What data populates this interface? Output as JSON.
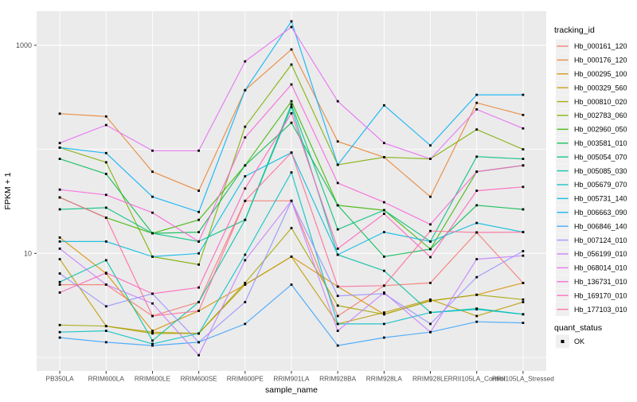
{
  "figure": {
    "legend": {
      "tracking_title": "tracking_id",
      "quant_title": "quant_status",
      "quant_label": "OK"
    },
    "colors": {
      "panel_bg": "#EBEBEB",
      "grid": "#FFFFFF",
      "tick_text": "#4D4D4D",
      "axis_text": "#000000",
      "legend_key_bg": "#F0F0F0",
      "point": "#000000"
    }
  },
  "chart_data": {
    "type": "line",
    "xlabel": "sample_name",
    "ylabel": "FPKM + 1",
    "y_scale": "log10",
    "y_tick_values": [
      10,
      1000
    ],
    "y_minor_gridline_values": [
      1,
      100
    ],
    "legend_position": "right",
    "point_shape": "small-black-square (quant_status OK)",
    "categories": [
      "PB350LA",
      "RRIM600LA",
      "RRIM600LE",
      "RRIM600SE",
      "RRIM600PE",
      "RRIM901LA",
      "RRIM928BA",
      "RRIM928LA",
      "RRIM928LE",
      "RRII105LA_Control",
      "RRII105LA_Stressed"
    ],
    "series": [
      {
        "name": "Hb_000161_120",
        "color": "#F8766D",
        "values": [
          5.0,
          5.0,
          2.5,
          3.4,
          32,
          32,
          2.5,
          4.9,
          5.2,
          15.9,
          5.2
        ]
      },
      {
        "name": "Hb_000176_120",
        "color": "#EA8331",
        "values": [
          220,
          207,
          61,
          40,
          370,
          912,
          119,
          84,
          35,
          280,
          214
        ]
      },
      {
        "name": "Hb_000295_100",
        "color": "#D89000",
        "values": [
          14.2,
          6.4,
          1.8,
          2.8,
          5.0,
          9.3,
          4.8,
          2.6,
          3.5,
          4.0,
          5.2
        ]
      },
      {
        "name": "Hb_000329_560",
        "color": "#C09B00",
        "values": [
          8.8,
          2.0,
          1.75,
          1.7,
          5.0,
          9.3,
          2.1,
          2.7,
          3.6,
          2.5,
          3.4
        ]
      },
      {
        "name": "Hb_000810_020",
        "color": "#A3A500",
        "values": [
          2.05,
          2.0,
          1.7,
          1.7,
          5.2,
          17.5,
          3.15,
          2.6,
          3.5,
          4.0,
          3.6
        ]
      },
      {
        "name": "Hb_002783_060",
        "color": "#7CAE00",
        "values": [
          104,
          75,
          9.3,
          7.8,
          165,
          653,
          71,
          84,
          81,
          155,
          100
        ]
      },
      {
        "name": "Hb_002960_050",
        "color": "#39B600",
        "values": [
          34.5,
          22,
          15.6,
          21,
          70,
          290,
          29,
          26,
          11,
          61,
          70
        ]
      },
      {
        "name": "Hb_003581_010",
        "color": "#00BB4E",
        "values": [
          81,
          58,
          15.6,
          16,
          70,
          180,
          29,
          9.3,
          11,
          29,
          26.5
        ]
      },
      {
        "name": "Hb_005054_070",
        "color": "#00BF7D",
        "values": [
          26.5,
          27.5,
          15.6,
          13,
          21,
          270,
          17,
          26,
          13,
          85,
          81
        ]
      },
      {
        "name": "Hb_005085_030",
        "color": "#00C1A3",
        "values": [
          5.3,
          8.6,
          1.45,
          3.4,
          21,
          255,
          9.7,
          6.8,
          2.7,
          2.95,
          2.6
        ]
      },
      {
        "name": "Hb_005679_070",
        "color": "#00BFC4",
        "values": [
          1.75,
          1.8,
          1.35,
          1.7,
          9.7,
          60,
          2.1,
          2.1,
          2.7,
          2.9,
          2.6
        ]
      },
      {
        "name": "Hb_005731_140",
        "color": "#00BAE0",
        "values": [
          13,
          13,
          9.3,
          10,
          55,
          93,
          9.7,
          16,
          13,
          19.6,
          16
        ]
      },
      {
        "name": "Hb_006663_090",
        "color": "#00B0F6",
        "values": [
          104,
          92,
          35,
          25,
          370,
          1700,
          71,
          265,
          109,
          334,
          334
        ]
      },
      {
        "name": "Hb_006846_140",
        "color": "#35A2FF",
        "values": [
          1.55,
          1.4,
          1.3,
          1.4,
          2.1,
          5.0,
          1.3,
          1.55,
          1.75,
          2.2,
          2.15
        ]
      },
      {
        "name": "Hb_007124_010",
        "color": "#9590FF",
        "values": [
          6.4,
          3.1,
          4.1,
          1.4,
          3.4,
          32,
          3.9,
          4.1,
          2.1,
          5.9,
          10.5
        ]
      },
      {
        "name": "Hb_056199_010",
        "color": "#C77CFF",
        "values": [
          11.1,
          5.0,
          3.3,
          1.05,
          8.6,
          32,
          1.8,
          4.2,
          1.75,
          8.8,
          9.5
        ]
      },
      {
        "name": "Hb_068014_010",
        "color": "#E76BF3",
        "values": [
          115,
          171,
          97,
          97,
          700,
          1500,
          290,
          115,
          81,
          242,
          159
        ]
      },
      {
        "name": "Hb_136731_010",
        "color": "#FA62DB",
        "values": [
          41,
          36.5,
          24.6,
          13,
          130,
          420,
          47.5,
          31,
          19,
          61,
          70
        ]
      },
      {
        "name": "Hb_169170_010",
        "color": "#FF62BC",
        "values": [
          4.2,
          6.5,
          4.1,
          4.7,
          42,
          222,
          11.1,
          24,
          9.2,
          40,
          43.5
        ]
      },
      {
        "name": "Hb_177103_010",
        "color": "#FF6A98",
        "values": [
          34.5,
          22,
          2.5,
          2.8,
          32,
          93,
          4.8,
          4.9,
          16.4,
          15.9,
          16
        ]
      }
    ]
  }
}
